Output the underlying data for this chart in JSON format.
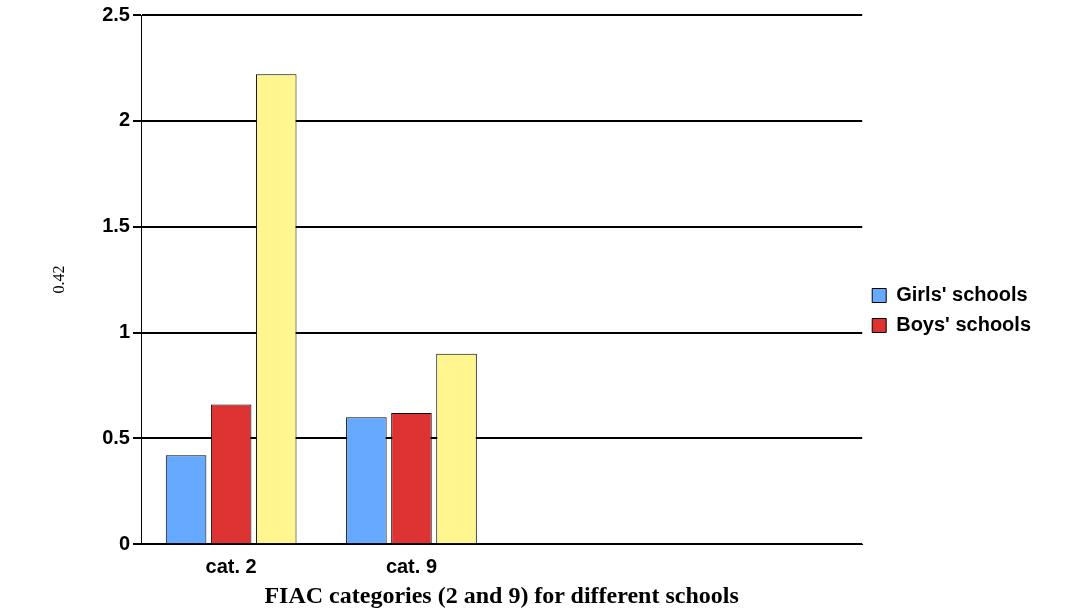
{
  "chart_data": {
    "type": "bar",
    "xlabel": "FIAC categories (2 and 9) for different schools",
    "ylabel": "0.42",
    "categories": [
      "cat. 2",
      "cat. 9",
      null,
      null
    ],
    "series": [
      {
        "name": "Girls' schools",
        "color": "#66aaff",
        "values": [
          0.42,
          0.6,
          null,
          null
        ]
      },
      {
        "name": "Boys' schools",
        "color": "#dd3333",
        "values": [
          0.66,
          0.62,
          null,
          null
        ]
      },
      {
        "color": "#fff68f",
        "values": [
          2.22,
          0.9,
          null,
          null
        ]
      }
    ],
    "ylim": [
      0,
      2.5
    ],
    "yticks": [
      0,
      0.5,
      1,
      1.5,
      2,
      2.5
    ],
    "grid": "y",
    "legend": "right"
  }
}
